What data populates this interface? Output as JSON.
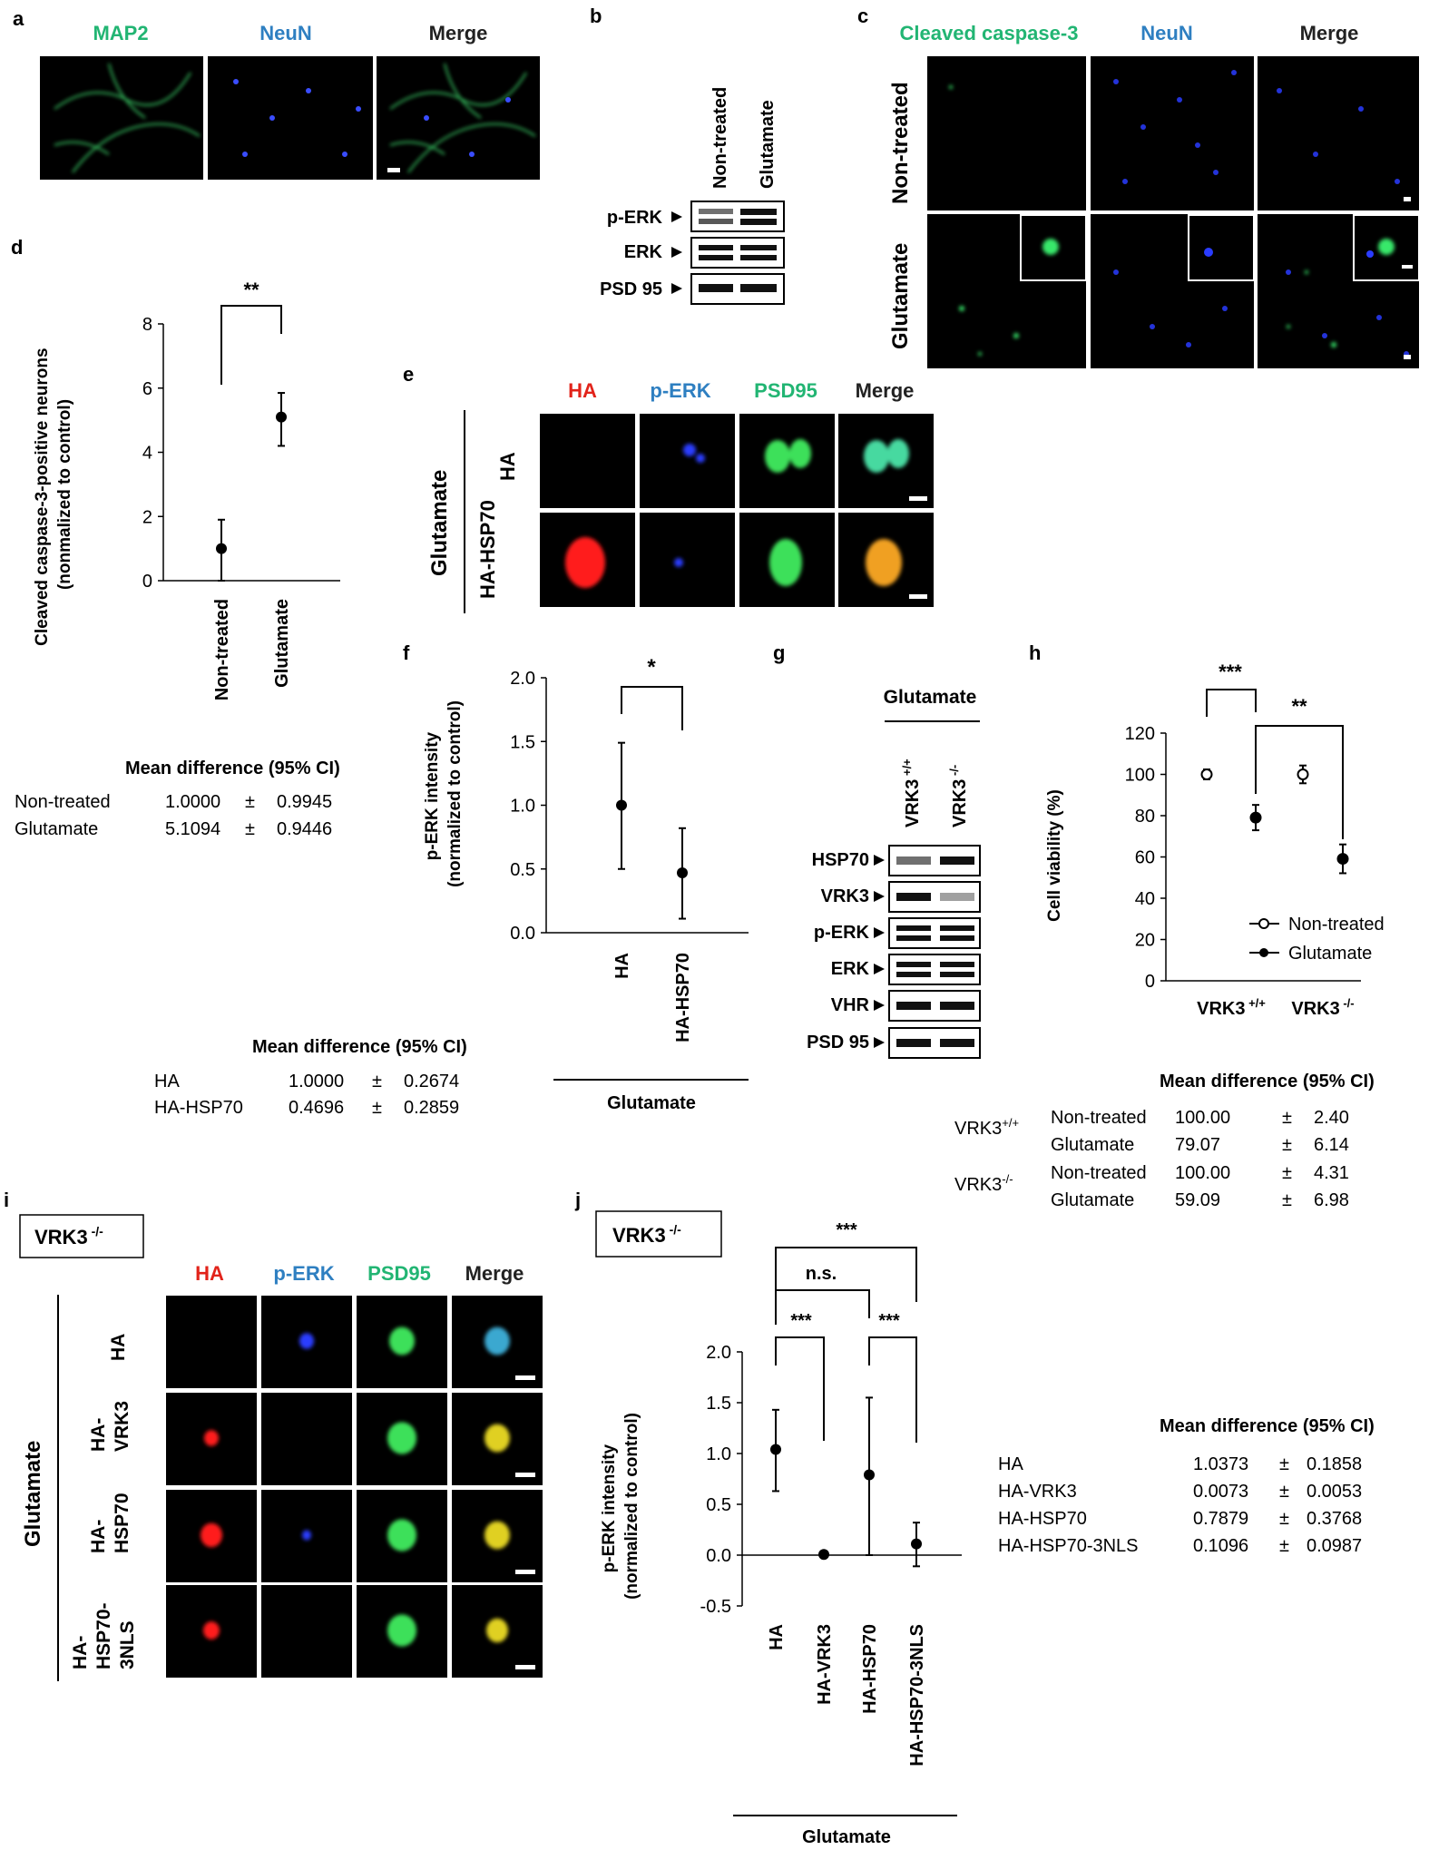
{
  "panel_letters": {
    "a": "a",
    "b": "b",
    "c": "c",
    "d": "d",
    "e": "e",
    "f": "f",
    "g": "g",
    "h": "h",
    "i": "i",
    "j": "j"
  },
  "colors": {
    "green": "#22b573",
    "blue": "#2e7fc1",
    "red": "#e2231a",
    "micro_bg": "#000000"
  },
  "panel_a": {
    "labels": [
      "MAP2",
      "NeuN",
      "Merge"
    ]
  },
  "panel_b": {
    "lanes": [
      "Non-treated",
      "Glutamate"
    ],
    "bands": [
      "p-ERK",
      "ERK",
      "PSD 95"
    ]
  },
  "panel_c": {
    "columns": [
      "Cleaved caspase-3",
      "NeuN",
      "Merge"
    ],
    "rows": [
      "Non-treated",
      "Glutamate"
    ]
  },
  "panel_d": {
    "ylabel_line1": "Cleaved caspase-3-positive neurons",
    "ylabel_line2": "(nonmalized to control)",
    "sig": "**",
    "table_title": "Mean difference (95% CI)",
    "table": [
      {
        "name": "Non-treated",
        "mean": "1.0000",
        "pm": "±",
        "ci": "0.9945"
      },
      {
        "name": "Glutamate",
        "mean": "5.1094",
        "pm": "±",
        "ci": "0.9446"
      }
    ]
  },
  "panel_e": {
    "columns": [
      "HA",
      "p-ERK",
      "PSD95",
      "Merge"
    ],
    "group": "Glutamate",
    "rows": [
      "HA",
      "HA-HSP70"
    ]
  },
  "panel_f": {
    "ylabel_line1": "p-ERK intensity",
    "ylabel_line2": "(normalized to control)",
    "sig": "*",
    "group": "Glutamate",
    "table_title": "Mean difference (95% CI)",
    "table": [
      {
        "name": "HA",
        "mean": "1.0000",
        "pm": "±",
        "ci": "0.2674"
      },
      {
        "name": "HA-HSP70",
        "mean": "0.4696",
        "pm": "±",
        "ci": "0.2859"
      }
    ]
  },
  "panel_g": {
    "group": "Glutamate",
    "bands": [
      "HSP70",
      "VRK3",
      "p-ERK",
      "ERK",
      "VHR",
      "PSD 95"
    ]
  },
  "panel_h": {
    "ylabel": "Cell viability (%)",
    "legend": [
      "Non-treated",
      "Glutamate"
    ],
    "sig1": "***",
    "sig2": "**",
    "table_title": "Mean difference (95% CI)",
    "table": [
      {
        "group": "VRK3+/+",
        "name": "Non-treated",
        "mean": "100.00",
        "pm": "±",
        "ci": "2.40"
      },
      {
        "group": "",
        "name": "Glutamate",
        "mean": "79.07",
        "pm": "±",
        "ci": "6.14"
      },
      {
        "group": "VRK3-/-",
        "name": "Non-treated",
        "mean": "100.00",
        "pm": "±",
        "ci": "4.31"
      },
      {
        "group": "",
        "name": "Glutamate",
        "mean": "59.09",
        "pm": "±",
        "ci": "6.98"
      }
    ]
  },
  "panel_i": {
    "box": "VRK3 -/-",
    "columns": [
      "HA",
      "p-ERK",
      "PSD95",
      "Merge"
    ],
    "group": "Glutamate",
    "rows": [
      "HA",
      "HA-VRK3",
      "HA-HSP70",
      "HA-HSP70-3NLS"
    ]
  },
  "panel_j": {
    "box": "VRK3 -/-",
    "ylabel_line1": "p-ERK intensity",
    "ylabel_line2": "(normalized to control)",
    "sig_top": "***",
    "sig_ns": "n.s.",
    "sig_a": "***",
    "sig_b": "***",
    "group": "Glutamate",
    "table_title": "Mean difference (95% CI)",
    "table": [
      {
        "name": "HA",
        "mean": "1.0373",
        "pm": "±",
        "ci": "0.1858"
      },
      {
        "name": "HA-VRK3",
        "mean": "0.0073",
        "pm": "±",
        "ci": "0.0053"
      },
      {
        "name": "HA-HSP70",
        "mean": "0.7879",
        "pm": "±",
        "ci": "0.3768"
      },
      {
        "name": "HA-HSP70-3NLS",
        "mean": "0.1096",
        "pm": "±",
        "ci": "0.0987"
      }
    ]
  },
  "chart_data": [
    {
      "type": "scatter",
      "id": "d",
      "categories": [
        "Non-treated",
        "Glutamate"
      ],
      "values": [
        1.0,
        5.1
      ],
      "err_low": [
        0.0,
        4.2
      ],
      "err_high": [
        1.9,
        5.85
      ],
      "ylim": [
        0,
        8
      ],
      "yticks": [
        0,
        2,
        4,
        6,
        8
      ],
      "ylabel": "Cleaved caspase-3-positive neurons (nonmalized to control)"
    },
    {
      "type": "scatter",
      "id": "f",
      "categories": [
        "HA",
        "HA-HSP70"
      ],
      "values": [
        1.0,
        0.47
      ],
      "err_low": [
        0.5,
        0.11
      ],
      "err_high": [
        1.49,
        0.82
      ],
      "ylim": [
        0,
        2
      ],
      "yticks": [
        "0.0",
        "0.5",
        "1.0",
        "1.5",
        "2.0"
      ],
      "ylabel": "p-ERK intensity (normalized to control)"
    },
    {
      "type": "scatter",
      "id": "h",
      "categories": [
        "VRK3 +/+",
        "VRK3 -/-"
      ],
      "series": [
        {
          "name": "Non-treated",
          "values": [
            100,
            100
          ],
          "err": [
            2.4,
            4.31
          ]
        },
        {
          "name": "Glutamate",
          "values": [
            79.07,
            59.09
          ],
          "err": [
            6.14,
            6.98
          ]
        }
      ],
      "ylim": [
        0,
        120
      ],
      "yticks": [
        0,
        20,
        40,
        60,
        80,
        100,
        120
      ],
      "ylabel": "Cell viability (%)"
    },
    {
      "type": "scatter",
      "id": "j",
      "categories": [
        "HA",
        "HA-VRK3",
        "HA-HSP70",
        "HA-HSP70-3NLS"
      ],
      "values": [
        1.04,
        0.007,
        0.79,
        0.11
      ],
      "err_low": [
        0.63,
        0.0,
        0.0,
        -0.11
      ],
      "err_high": [
        1.43,
        0.01,
        1.55,
        0.32
      ],
      "ylim": [
        -0.5,
        2
      ],
      "yticks": [
        "-0.5",
        "0.0",
        "0.5",
        "1.0",
        "1.5",
        "2.0"
      ],
      "ylabel": "p-ERK intensity (normalized to control)"
    }
  ]
}
